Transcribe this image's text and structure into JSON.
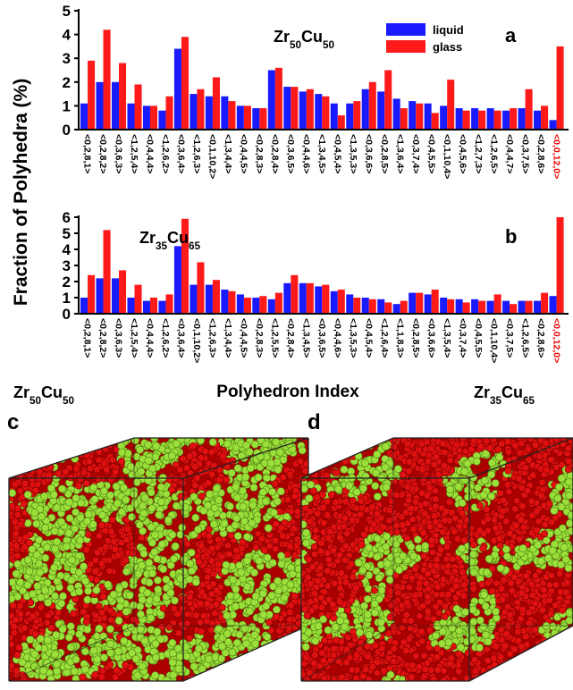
{
  "y_label": "Fraction of Polyhedra (%)",
  "x_label": "Polyhedron Index",
  "chart_data": [
    {
      "type": "bar",
      "panel": "a",
      "title": "Zr50Cu50",
      "legend": "top",
      "categories": [
        "<0,2,8,1>",
        "<0,2,8,2>",
        "<0,3,6,3>",
        "<1,2,5,4>",
        "<0,4,4,4>",
        "<1,2,6,2>",
        "<0,3,6,4>",
        "<1,2,6,3>",
        "<0,1,10,2>",
        "<1,3,4,4>",
        "<0,4,4,5>",
        "<0,2,8,3>",
        "<0,2,8,4>",
        "<0,3,6,5>",
        "<0,4,4,6>",
        "<1,3,4,5>",
        "<0,4,5,4>",
        "<1,3,5,3>",
        "<0,3,6,6>",
        "<0,2,8,5>",
        "<1,3,6,4>",
        "<0,3,7,4>",
        "<0,4,5,5>",
        "<0,1,10,4>",
        "<0,4,5,6>",
        "<1,2,7,3>",
        "<1,2,6,5>",
        "<0,4,4,7>",
        "<0,3,7,5>",
        "<0,2,8,6>",
        "<0,0,12,0>"
      ],
      "series": [
        {
          "name": "liquid",
          "color": "#1a1aff",
          "values": [
            1.1,
            2.0,
            2.0,
            1.1,
            1.0,
            0.8,
            3.4,
            1.5,
            1.4,
            1.4,
            1.0,
            0.9,
            2.5,
            1.8,
            1.6,
            1.5,
            1.1,
            1.1,
            1.7,
            1.6,
            1.3,
            1.2,
            1.1,
            1.0,
            0.9,
            0.9,
            0.9,
            0.8,
            0.9,
            0.8,
            0.4
          ]
        },
        {
          "name": "glass",
          "color": "#ff1a1a",
          "values": [
            2.9,
            4.2,
            2.8,
            1.9,
            1.0,
            1.4,
            3.9,
            1.7,
            2.2,
            1.2,
            1.0,
            0.9,
            2.6,
            1.8,
            1.7,
            1.4,
            0.6,
            1.2,
            2.0,
            2.5,
            0.9,
            1.1,
            0.7,
            2.1,
            0.8,
            0.8,
            0.8,
            0.9,
            1.7,
            1.0,
            3.5
          ]
        }
      ],
      "ylim": [
        0,
        5
      ],
      "yticks": [
        0,
        1,
        2,
        3,
        4,
        5
      ]
    },
    {
      "type": "bar",
      "panel": "b",
      "title": "Zr35Cu65",
      "categories": [
        "<0,2,8,1>",
        "<0,2,8,2>",
        "<0,3,6,3>",
        "<1,2,5,4>",
        "<0,4,4,4>",
        "<1,2,6,2>",
        "<0,3,6,4>",
        "<0,1,10,2>",
        "<1,2,6,3>",
        "<1,3,4,4>",
        "<0,4,4,5>",
        "<0,2,8,3>",
        "<1,2,5,5>",
        "<0,2,8,4>",
        "<1,3,4,5>",
        "<0,3,6,5>",
        "<0,4,4,6>",
        "<1,3,5,3>",
        "<0,4,5,4>",
        "<1,2,6,4>",
        "<1,1,8,3>",
        "<0,2,8,5>",
        "<0,3,6,6>",
        "<1,3,5,4>",
        "<0,3,7,4>",
        "<0,4,5,5>",
        "<0,1,10,4>",
        "<0,3,7,5>",
        "<1,2,6,5>",
        "<0,2,8,6>",
        "<0,0,12,0>"
      ],
      "series": [
        {
          "color": "#1a1aff",
          "values": [
            1.0,
            2.2,
            2.2,
            1.0,
            0.8,
            0.8,
            4.2,
            1.8,
            1.8,
            1.5,
            1.2,
            1.0,
            0.9,
            1.9,
            1.9,
            1.7,
            1.4,
            1.2,
            1.0,
            0.9,
            0.6,
            1.3,
            1.2,
            1.0,
            0.9,
            0.9,
            0.8,
            0.8,
            0.8,
            0.8,
            1.1
          ]
        },
        {
          "color": "#ff1a1a",
          "values": [
            2.4,
            5.2,
            2.7,
            1.8,
            1.0,
            1.2,
            5.9,
            3.2,
            2.1,
            1.4,
            1.0,
            1.1,
            1.3,
            2.4,
            1.9,
            1.8,
            1.5,
            1.0,
            0.9,
            0.7,
            0.8,
            1.3,
            1.5,
            0.9,
            0.7,
            0.8,
            1.2,
            0.6,
            0.8,
            1.3,
            6.0
          ]
        }
      ],
      "ylim": [
        0,
        6
      ],
      "yticks": [
        0,
        1,
        2,
        3,
        4,
        5,
        6
      ]
    }
  ],
  "panels": [
    {
      "label": "c",
      "composition": "Zr50Cu50"
    },
    {
      "label": "d",
      "composition": "Zr35Cu65"
    }
  ]
}
